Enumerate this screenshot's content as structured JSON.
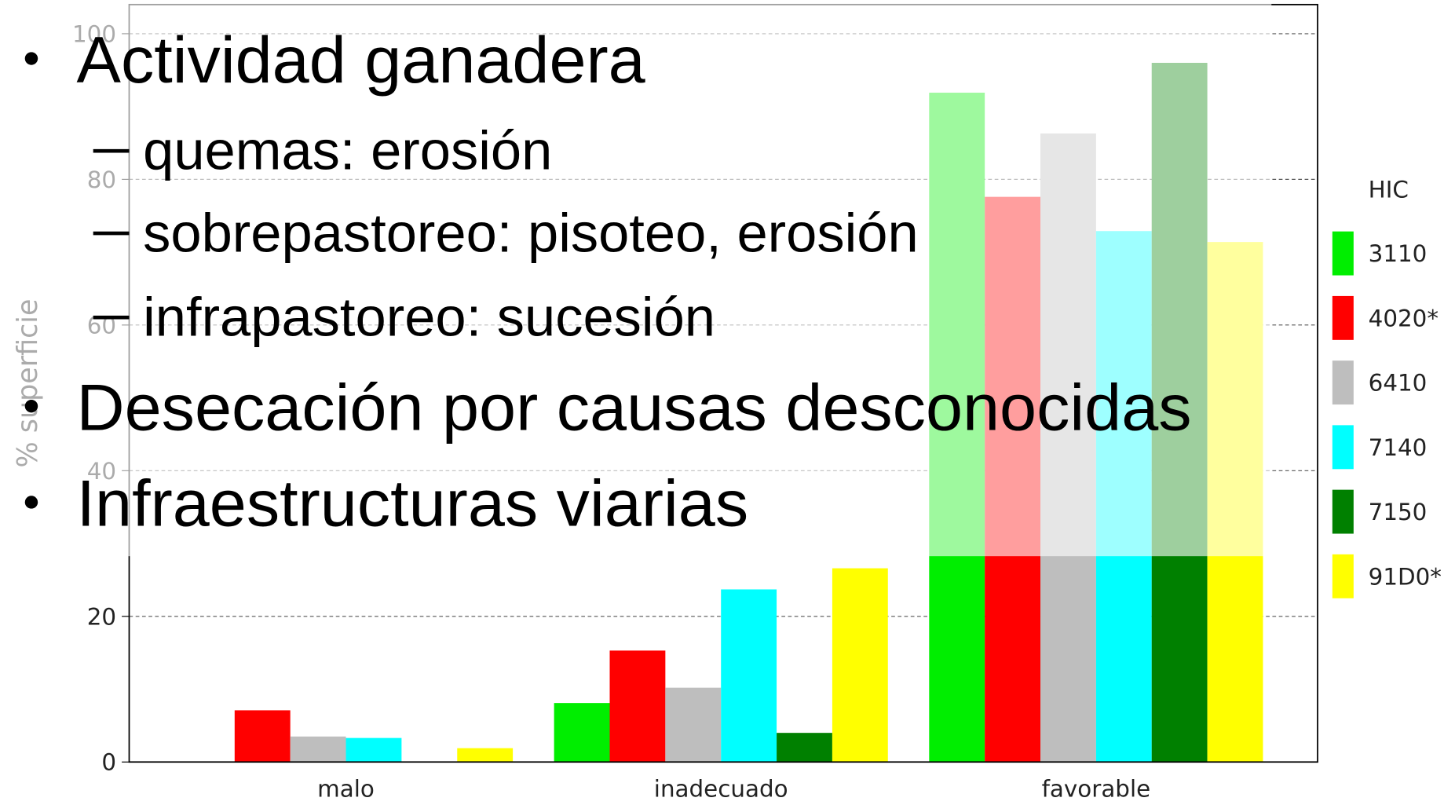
{
  "chart_data": {
    "type": "bar",
    "y_label": "% superficie",
    "categories": [
      "malo",
      "inadecuado",
      "favorable"
    ],
    "legend_title": "HIC",
    "legend": "right",
    "grid": true,
    "ylim": [
      0,
      104
    ],
    "yticks": [
      0,
      20,
      40,
      60,
      80,
      100
    ],
    "series": [
      {
        "name": "3110",
        "color": "#00ee00",
        "values": [
          0,
          8.1,
          91.9
        ]
      },
      {
        "name": "4020*",
        "color": "#ff0000",
        "values": [
          7.1,
          15.3,
          77.6
        ]
      },
      {
        "name": "6410",
        "color": "#bebebe",
        "values": [
          3.5,
          10.2,
          86.3
        ]
      },
      {
        "name": "7140",
        "color": "#00ffff",
        "values": [
          3.3,
          23.7,
          72.9
        ]
      },
      {
        "name": "7150",
        "color": "#008000",
        "values": [
          0,
          4.0,
          96.0
        ]
      },
      {
        "name": "91D0*",
        "color": "#ffff00",
        "values": [
          1.9,
          26.6,
          71.4
        ]
      }
    ]
  },
  "bullets": [
    {
      "text": "Actividad ganadera",
      "items": [
        "quemas: erosión",
        "sobrepastoreo: pisoteo, erosión",
        "infrapastoreo: sucesión"
      ]
    },
    {
      "text": "Desecación por causas desconocidas",
      "items": []
    },
    {
      "text": "Infraestructuras viarias",
      "items": []
    }
  ]
}
